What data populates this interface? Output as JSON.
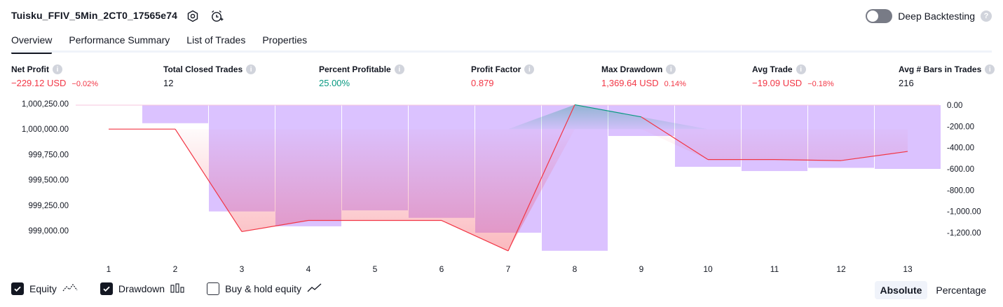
{
  "header": {
    "title": "Tuisku_FFIV_5Min_2CT0_17565e74",
    "deep_backtesting_label": "Deep Backtesting",
    "help_glyph": "?"
  },
  "tabs": [
    {
      "label": "Overview"
    },
    {
      "label": "Performance Summary"
    },
    {
      "label": "List of Trades"
    },
    {
      "label": "Properties"
    }
  ],
  "info_glyph": "i",
  "metrics": [
    {
      "label": "Net Profit",
      "value": "−229.12 USD",
      "sub": "−0.02%",
      "color": "#f23645"
    },
    {
      "label": "Total Closed Trades",
      "value": "12",
      "sub": "",
      "color": "#131722"
    },
    {
      "label": "Percent Profitable",
      "value": "25.00%",
      "sub": "",
      "color": "#089981"
    },
    {
      "label": "Profit Factor",
      "value": "0.879",
      "sub": "",
      "color": "#f23645"
    },
    {
      "label": "Max Drawdown",
      "value": "1,369.64 USD",
      "sub": "0.14%",
      "color": "#f23645"
    },
    {
      "label": "Avg Trade",
      "value": "−19.09 USD",
      "sub": "−0.18%",
      "color": "#f23645"
    },
    {
      "label": "Avg # Bars in Trades",
      "value": "216",
      "sub": "",
      "color": "#131722"
    }
  ],
  "chart_data": {
    "type": "line",
    "x": [
      1,
      2,
      3,
      4,
      5,
      6,
      7,
      8,
      9,
      10,
      11,
      12,
      13
    ],
    "left_ticks": [
      "1,000,250.00",
      "1,000,000.00",
      "999,750.00",
      "999,500.00",
      "999,250.00",
      "999,000.00"
    ],
    "left_tick_values": [
      1000250,
      1000000,
      999750,
      999500,
      999250,
      999000
    ],
    "right_ticks": [
      "0.00",
      "-200.00",
      "-400.00",
      "-600.00",
      "-800.00",
      "-1,000.00",
      "-1,200.00"
    ],
    "right_tick_values": [
      0,
      -200,
      -400,
      -600,
      -800,
      -1000,
      -1200
    ],
    "equity_ylim": [
      998800,
      1000250
    ],
    "drawdown_ylim": [
      -1360,
      0
    ],
    "series": [
      {
        "name": "Equity",
        "axis": "left",
        "color": "#f23645",
        "values": [
          1000000,
          1000000,
          998990,
          999100,
          999100,
          999100,
          998800,
          1000240,
          1000120,
          999700,
          999700,
          999690,
          999780
        ]
      },
      {
        "name": "Drawdown",
        "axis": "right",
        "color": "#c59cff",
        "type": "bar",
        "values": [
          null,
          -170,
          -1000,
          -1140,
          -990,
          -1060,
          -1200,
          -1370,
          -290,
          -580,
          -620,
          -590,
          -600
        ]
      }
    ]
  },
  "legend": [
    {
      "label": "Equity",
      "checked": true
    },
    {
      "label": "Drawdown",
      "checked": true
    },
    {
      "label": "Buy & hold equity",
      "checked": false
    }
  ],
  "modes": [
    {
      "label": "Absolute",
      "active": true
    },
    {
      "label": "Percentage",
      "active": false
    }
  ]
}
